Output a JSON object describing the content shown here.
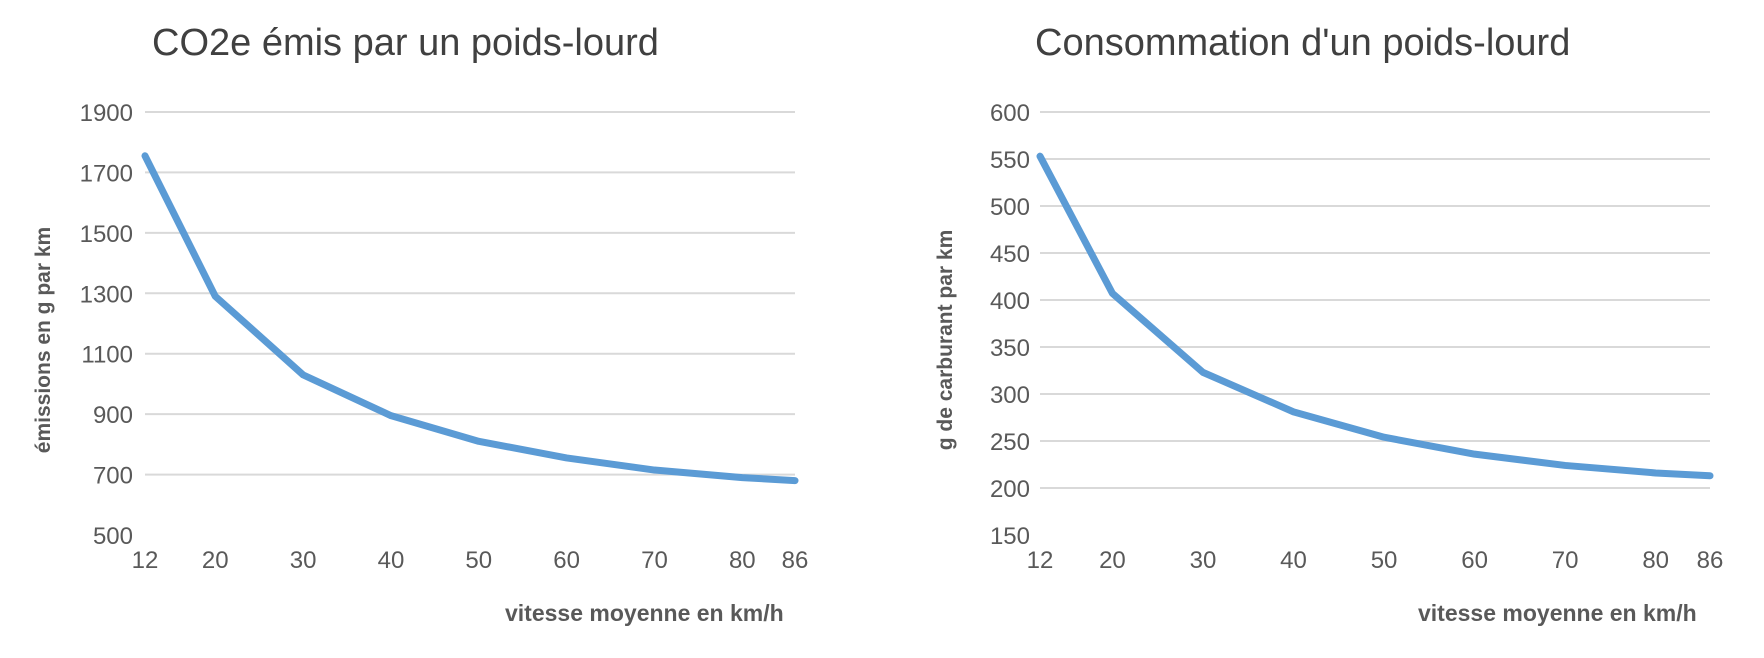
{
  "chart_data": [
    {
      "type": "line",
      "title": "CO2e émis par un poids-lourd",
      "xlabel": "vitesse moyenne en km/h",
      "ylabel": "émissions en g par km",
      "x": [
        12,
        20,
        30,
        40,
        50,
        60,
        70,
        80,
        86
      ],
      "x_tick_labels": [
        "12",
        "20",
        "30",
        "40",
        "50",
        "60",
        "70",
        "80",
        "86"
      ],
      "y_tick_labels": [
        "500",
        "700",
        "900",
        "1100",
        "1300",
        "1500",
        "1700",
        "1900"
      ],
      "ylim": [
        500,
        1900
      ],
      "grid": true,
      "series": [
        {
          "values": [
            1755,
            1290,
            1030,
            895,
            810,
            755,
            715,
            690,
            680
          ],
          "color": "#5b9bd5"
        }
      ]
    },
    {
      "type": "line",
      "title": "Consommation d'un poids-lourd",
      "xlabel": "vitesse moyenne en km/h",
      "ylabel": "g de carburant par km",
      "x": [
        12,
        20,
        30,
        40,
        50,
        60,
        70,
        80,
        86
      ],
      "x_tick_labels": [
        "12",
        "20",
        "30",
        "40",
        "50",
        "60",
        "70",
        "80",
        "86"
      ],
      "y_tick_labels": [
        "150",
        "200",
        "250",
        "300",
        "350",
        "400",
        "450",
        "500",
        "550",
        "600"
      ],
      "ylim": [
        150,
        600
      ],
      "grid": true,
      "series": [
        {
          "values": [
            553,
            407,
            323,
            281,
            254,
            236,
            224,
            216,
            213
          ],
          "color": "#5b9bd5"
        }
      ]
    }
  ]
}
